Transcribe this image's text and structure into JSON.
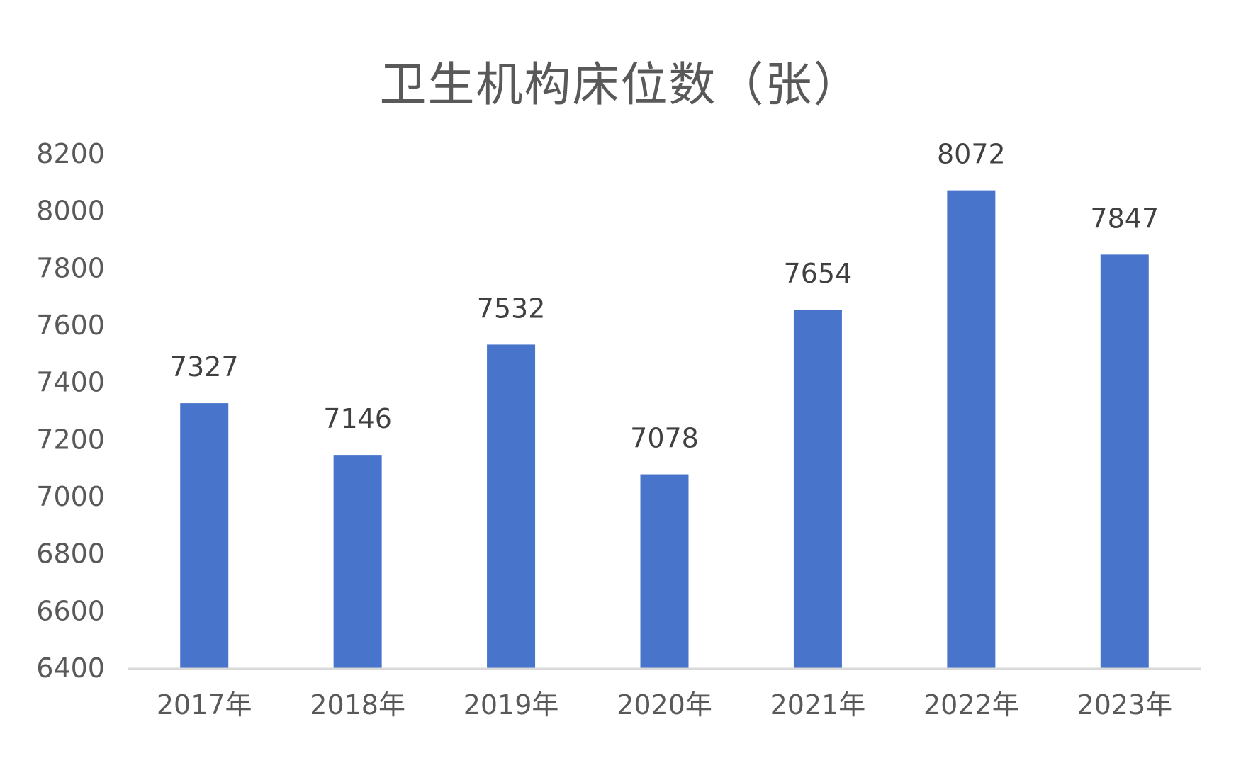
{
  "chart_data": {
    "type": "bar",
    "title": "卫生机构床位数（张）",
    "categories": [
      "2017年",
      "2018年",
      "2019年",
      "2020年",
      "2021年",
      "2022年",
      "2023年"
    ],
    "values": [
      7327,
      7146,
      7532,
      7078,
      7654,
      8072,
      7847
    ],
    "data_labels": [
      "7327",
      "7146",
      "7532",
      "7078",
      "7654",
      "8072",
      "7847"
    ],
    "xlabel": "",
    "ylabel": "",
    "ylim": [
      6400,
      8200
    ],
    "yticks": [
      6400,
      6600,
      6800,
      7000,
      7200,
      7400,
      7600,
      7800,
      8000,
      8200
    ],
    "ytick_labels": [
      "6400",
      "6600",
      "6800",
      "7000",
      "7200",
      "7400",
      "7600",
      "7800",
      "8000",
      "8200"
    ],
    "grid": false,
    "legend": "none",
    "colors": {
      "bar": "#4874CB",
      "axis": "#D9D9D9",
      "tick_text": "#595959",
      "label_text": "#404040",
      "title_text": "#595959"
    }
  }
}
